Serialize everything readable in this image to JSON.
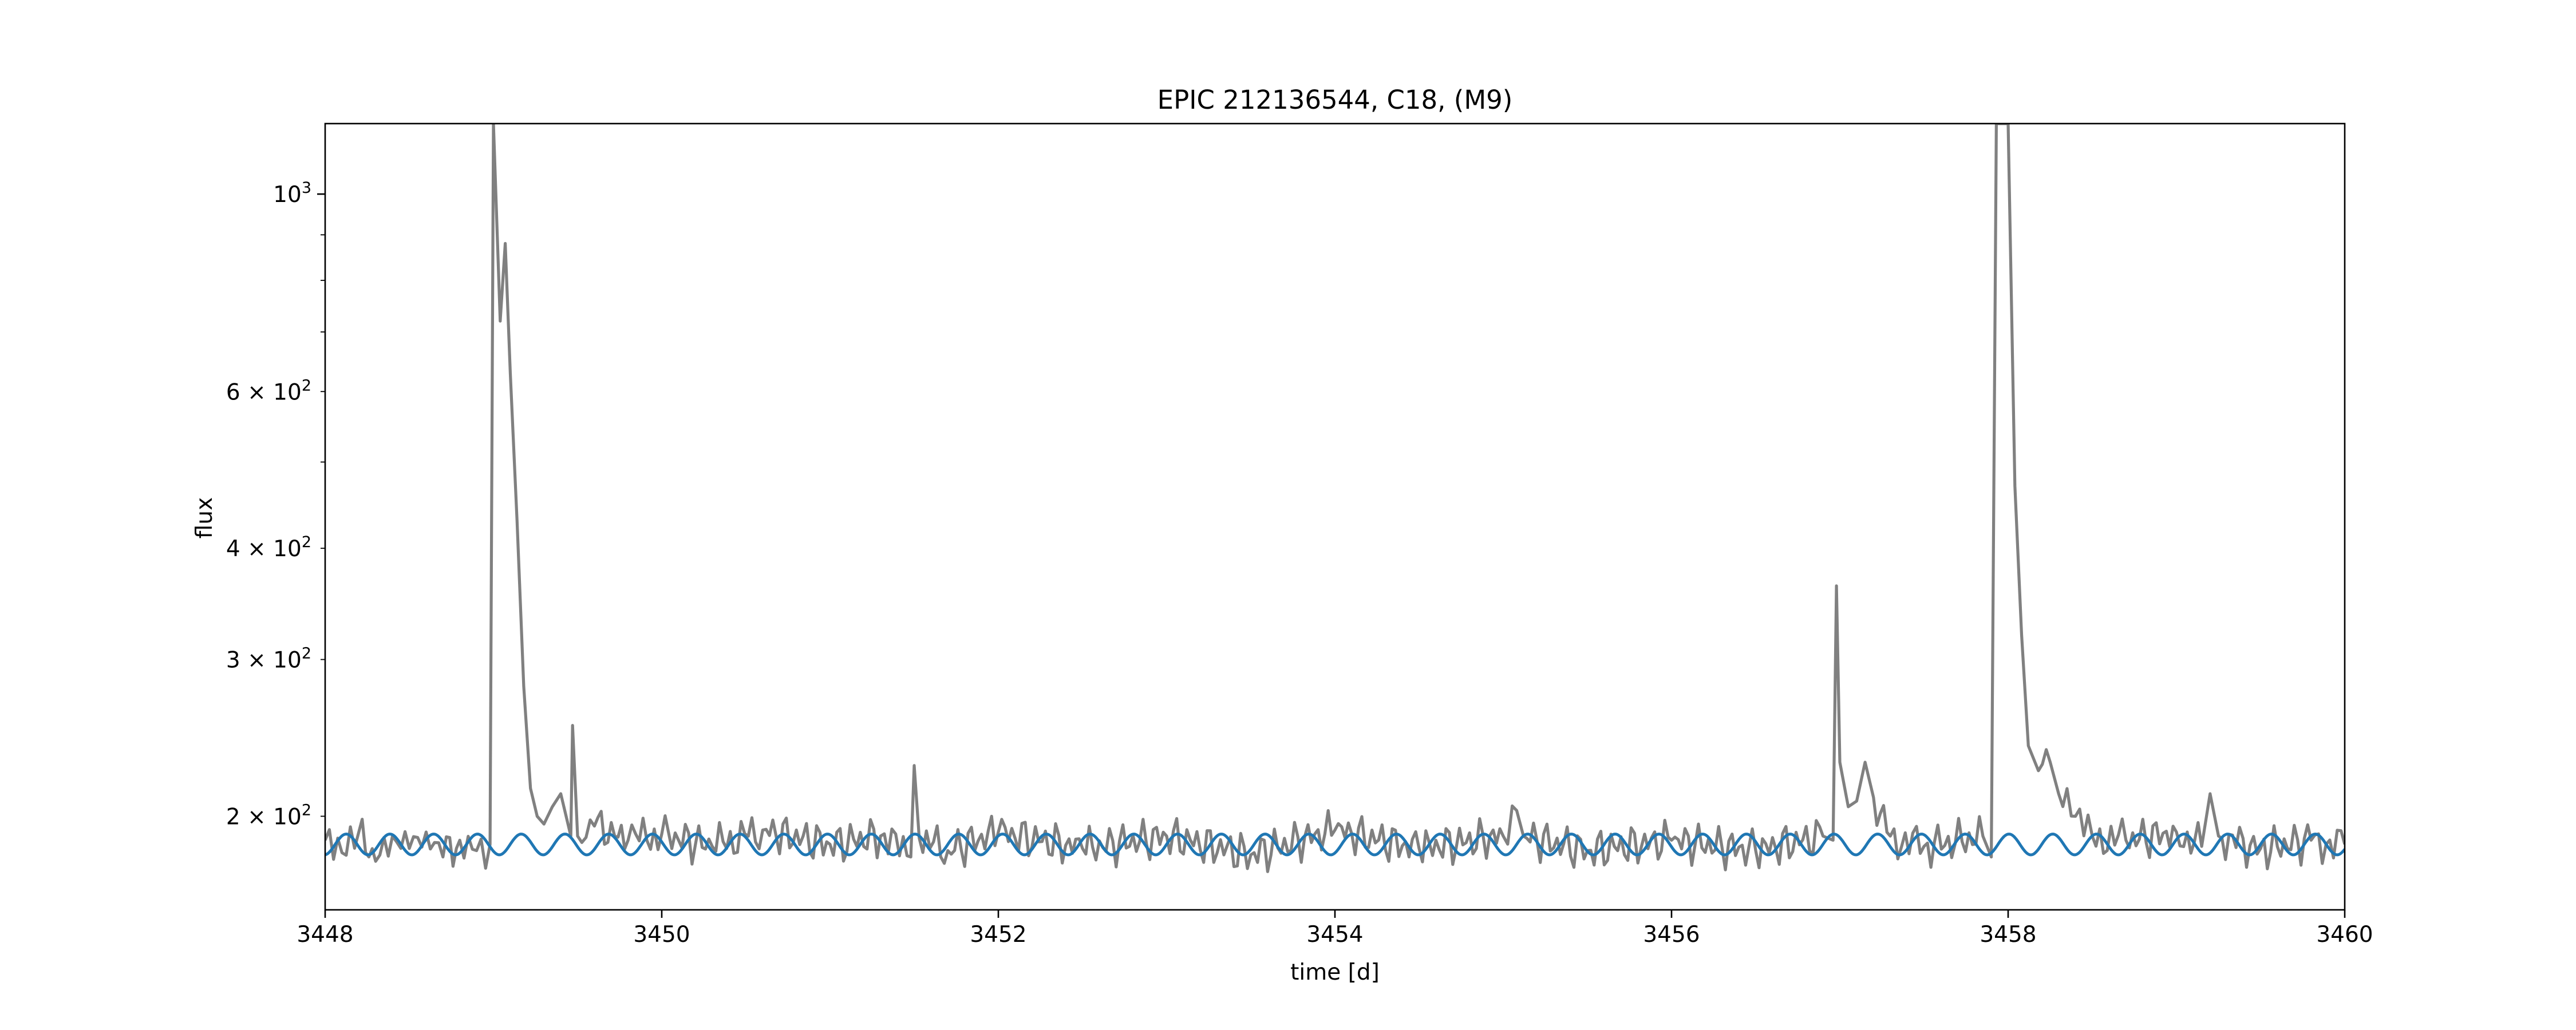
{
  "chart_data": {
    "type": "line",
    "title": "EPIC 212136544, C18, (M9)",
    "xlabel": "time [d]",
    "ylabel": "flux",
    "xlim": [
      3448,
      3460
    ],
    "ylim": [
      157,
      1200
    ],
    "yscale": "log",
    "grid": false,
    "xticks": [
      3448,
      3450,
      3452,
      3454,
      3456,
      3458,
      3460
    ],
    "x_tick_labels": [
      "3448",
      "3450",
      "3452",
      "3454",
      "3456",
      "3458",
      "3460"
    ],
    "yticks_major": [
      1000
    ],
    "y_major_tick_labels": [
      {
        "base": "10",
        "exp": "3"
      }
    ],
    "yticks_labeled_minor": [
      200,
      300,
      400,
      600
    ],
    "y_minor_tick_labels": [
      {
        "mant": "2",
        "base": "10",
        "exp": "2"
      },
      {
        "mant": "3",
        "base": "10",
        "exp": "2"
      },
      {
        "mant": "4",
        "base": "10",
        "exp": "2"
      },
      {
        "mant": "6",
        "base": "10",
        "exp": "2"
      }
    ],
    "yticks_unlabeled_minor": [
      500,
      700,
      800,
      900
    ],
    "series": [
      {
        "color": "#808080",
        "x": [
          3448.0,
          3448.1,
          3448.2,
          3448.3,
          3448.4,
          3448.5,
          3448.6,
          3448.7,
          3448.8,
          3448.9,
          3448.98,
          3449.0,
          3449.04,
          3449.07,
          3449.1,
          3449.14,
          3449.18,
          3449.22,
          3449.26,
          3449.3,
          3449.35,
          3449.4,
          3449.46,
          3449.47,
          3449.5,
          3449.6,
          3449.8,
          3450.0,
          3450.3,
          3450.6,
          3451.0,
          3451.3,
          3451.48,
          3451.5,
          3451.53,
          3451.7,
          3452.0,
          3452.5,
          3453.0,
          3453.5,
          3454.0,
          3454.5,
          3455.0,
          3455.08,
          3455.12,
          3455.5,
          3456.0,
          3456.5,
          3456.9,
          3456.96,
          3456.98,
          3457.0,
          3457.05,
          3457.1,
          3457.15,
          3457.2,
          3457.3,
          3457.5,
          3457.85,
          3457.9,
          3457.93,
          3457.96,
          3458.0,
          3458.04,
          3458.08,
          3458.12,
          3458.18,
          3458.25,
          3458.3,
          3458.4,
          3458.5,
          3458.7,
          3459.0,
          3459.15,
          3459.2,
          3459.25,
          3459.5,
          3459.8,
          3460.0
        ],
        "y": [
          188,
          182,
          192,
          178,
          190,
          184,
          192,
          180,
          188,
          183,
          186,
          1200,
          720,
          880,
          630,
          430,
          280,
          215,
          200,
          196,
          205,
          212,
          190,
          253,
          190,
          195,
          188,
          191,
          185,
          193,
          186,
          190,
          180,
          228,
          189,
          183,
          192,
          184,
          190,
          181,
          193,
          184,
          190,
          203,
          190,
          183,
          188,
          183,
          190,
          188,
          363,
          230,
          205,
          208,
          230,
          210,
          190,
          185,
          190,
          180,
          1200,
          1200,
          1200,
          470,
          320,
          240,
          225,
          230,
          212,
          200,
          190,
          188,
          192,
          185,
          212,
          190,
          184,
          188,
          186
        ]
      },
      {
        "color": "#1f77b4",
        "model": "sinusoid",
        "baseline": 186,
        "amplitude": 5,
        "period_days": 0.26,
        "phase_days": 0.06
      }
    ]
  }
}
